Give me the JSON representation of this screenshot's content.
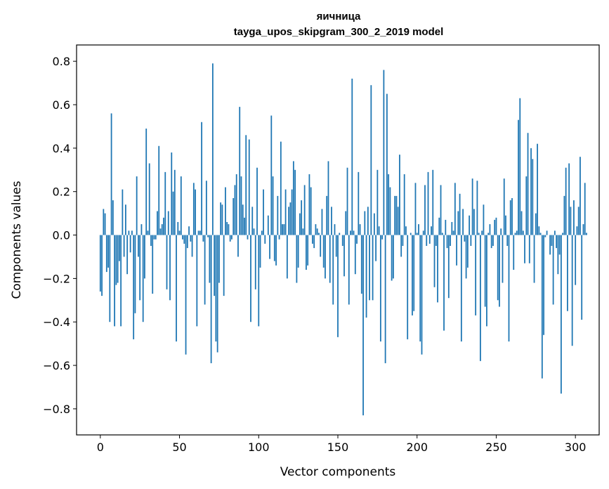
{
  "chart_data": {
    "type": "bar",
    "title": "яичница",
    "subtitle": "tayga_upos_skipgram_300_2_2019 model",
    "xlabel": "Vector components",
    "ylabel": "Components values",
    "xlim": [
      -15,
      315
    ],
    "ylim": [
      -0.92,
      0.875
    ],
    "xticks": [
      0,
      50,
      100,
      150,
      200,
      250,
      300
    ],
    "yticks": [
      -0.8,
      -0.6,
      -0.4,
      -0.2,
      0.0,
      0.2,
      0.4,
      0.6,
      0.8
    ],
    "xtick_labels": [
      "0",
      "50",
      "100",
      "150",
      "200",
      "250",
      "300"
    ],
    "ytick_labels": [
      "−0.8",
      "−0.6",
      "−0.4",
      "−0.2",
      "0.0",
      "0.2",
      "0.4",
      "0.6",
      "0.8"
    ],
    "bar_color": "#1f77b4",
    "grid": false,
    "legend": "none",
    "values": [
      -0.26,
      -0.28,
      0.12,
      0.1,
      -0.17,
      -0.15,
      -0.4,
      0.56,
      0.16,
      -0.42,
      -0.23,
      -0.22,
      -0.12,
      -0.42,
      0.21,
      -0.1,
      0.14,
      -0.18,
      0.02,
      -0.08,
      0.02,
      -0.48,
      -0.36,
      0.27,
      -0.1,
      -0.3,
      0.05,
      -0.4,
      -0.2,
      0.49,
      0.02,
      0.33,
      -0.05,
      -0.27,
      -0.02,
      -0.02,
      0.11,
      0.41,
      0.03,
      0.05,
      0.08,
      0.29,
      -0.25,
      0.11,
      -0.3,
      0.38,
      0.2,
      0.3,
      -0.49,
      0.06,
      0.02,
      0.27,
      -0.02,
      -0.04,
      -0.55,
      -0.06,
      0.04,
      -0.03,
      -0.1,
      0.24,
      0.21,
      -0.42,
      0.02,
      0.02,
      0.52,
      -0.03,
      -0.32,
      0.25,
      -0.01,
      -0.22,
      -0.59,
      0.79,
      -0.28,
      -0.49,
      -0.54,
      -0.22,
      0.15,
      0.14,
      -0.28,
      0.22,
      0.06,
      0.05,
      -0.03,
      -0.02,
      0.17,
      0.23,
      0.28,
      -0.1,
      0.59,
      0.27,
      0.14,
      0.08,
      0.46,
      -0.02,
      0.44,
      -0.4,
      0.13,
      0.03,
      -0.25,
      0.31,
      -0.42,
      -0.15,
      0.02,
      0.21,
      -0.04,
      0.0,
      0.09,
      -0.11,
      0.55,
      0.27,
      -0.12,
      -0.14,
      0.18,
      -0.02,
      0.43,
      0.05,
      0.05,
      0.21,
      -0.2,
      0.13,
      0.15,
      0.21,
      0.34,
      0.3,
      -0.22,
      -0.15,
      0.1,
      0.16,
      0.03,
      0.23,
      -0.16,
      -0.14,
      0.28,
      0.22,
      -0.04,
      -0.06,
      0.05,
      0.03,
      0.01,
      -0.1,
      0.12,
      -0.15,
      -0.2,
      0.18,
      0.34,
      -0.22,
      0.13,
      -0.32,
      0.05,
      -0.1,
      -0.47,
      0.01,
      0.0,
      -0.05,
      -0.19,
      0.11,
      0.31,
      -0.32,
      0.02,
      0.72,
      0.02,
      -0.18,
      -0.04,
      0.29,
      0.05,
      -0.27,
      -0.83,
      0.11,
      -0.38,
      0.13,
      -0.3,
      0.69,
      -0.3,
      0.1,
      -0.12,
      0.3,
      0.04,
      -0.49,
      -0.02,
      0.76,
      -0.59,
      0.65,
      0.28,
      0.22,
      -0.21,
      -0.2,
      0.18,
      0.18,
      0.13,
      0.37,
      -0.1,
      -0.05,
      0.28,
      0.04,
      -0.48,
      0.0,
      0.01,
      -0.37,
      -0.35,
      0.24,
      0.01,
      0.05,
      -0.49,
      -0.55,
      0.02,
      0.23,
      -0.05,
      0.29,
      -0.04,
      0.04,
      0.3,
      -0.24,
      -0.05,
      -0.31,
      0.08,
      0.23,
      0.01,
      -0.44,
      0.07,
      -0.06,
      -0.29,
      -0.05,
      0.06,
      0.02,
      0.24,
      -0.14,
      0.11,
      0.19,
      -0.49,
      0.12,
      -0.03,
      -0.2,
      -0.15,
      0.09,
      -0.05,
      0.26,
      0.12,
      -0.37,
      0.25,
      0.01,
      -0.58,
      0.02,
      0.14,
      -0.33,
      -0.42,
      0.01,
      0.05,
      -0.06,
      -0.05,
      0.07,
      0.08,
      -0.3,
      -0.33,
      0.03,
      -0.22,
      0.26,
      0.09,
      -0.05,
      -0.49,
      0.16,
      0.17,
      -0.16,
      0.01,
      0.02,
      0.53,
      0.63,
      0.11,
      0.02,
      -0.13,
      0.27,
      0.47,
      -0.13,
      0.4,
      0.35,
      -0.22,
      0.1,
      0.42,
      0.04,
      0.01,
      -0.66,
      -0.46,
      -0.01,
      0.02,
      0.0,
      -0.09,
      -0.05,
      -0.32,
      0.02,
      -0.06,
      -0.18,
      -0.09,
      -0.73,
      0.01,
      0.18,
      0.31,
      -0.35,
      0.33,
      0.13,
      -0.51,
      0.16,
      -0.23,
      0.04,
      0.13,
      0.36,
      -0.39,
      0.05,
      0.24,
      0.01
    ]
  }
}
